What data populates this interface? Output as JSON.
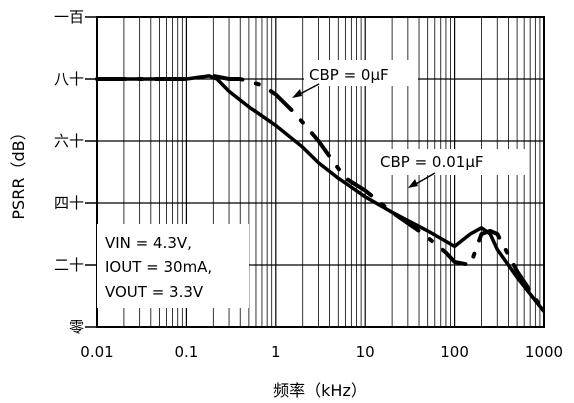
{
  "chart_data": {
    "type": "line",
    "xlabel": "频率（kHz）",
    "ylabel": "PSRR（dB）",
    "x_scale": "log",
    "xlim": [
      0.01,
      1000
    ],
    "ylim": [
      0,
      100
    ],
    "grid": true,
    "x_tick_labels": [
      "0.01",
      "0.1",
      "1",
      "10",
      "100",
      "1000"
    ],
    "y_tick_labels": [
      "零",
      "二十",
      "四十",
      "六十",
      "八十",
      "一百"
    ],
    "conditions": [
      "VIN = 4.3V,",
      "IOUT = 30mA,",
      "VOUT = 3.3V"
    ],
    "series": [
      {
        "name": "CBP = 0.01μF",
        "style": "solid",
        "x": [
          0.01,
          0.03,
          0.1,
          0.18,
          0.22,
          0.3,
          0.5,
          1,
          2,
          3,
          5,
          10,
          20,
          50,
          100,
          150,
          200,
          250,
          300,
          500,
          1000
        ],
        "y": [
          80,
          80,
          80,
          81,
          80,
          76,
          71,
          65,
          58,
          53,
          48,
          42,
          37,
          31,
          26,
          30,
          32,
          30,
          25,
          16,
          5
        ]
      },
      {
        "name": "CBP = 0μF",
        "style": "dashed",
        "x": [
          0.01,
          0.03,
          0.1,
          0.2,
          0.3,
          0.4,
          0.7,
          1,
          1.5,
          2,
          3,
          4,
          6,
          10,
          20,
          40,
          60,
          80,
          100,
          150,
          200,
          250,
          300,
          500,
          1000
        ],
        "y": [
          80,
          80,
          80,
          81,
          80,
          80,
          78,
          75,
          70,
          66,
          60,
          55,
          48,
          44,
          37,
          31,
          27,
          24,
          21,
          20,
          30,
          31,
          30,
          18,
          5
        ]
      }
    ]
  },
  "annotations": {
    "cbp0": "CBP = 0μF",
    "cbp001": "CBP = 0.01μF"
  }
}
